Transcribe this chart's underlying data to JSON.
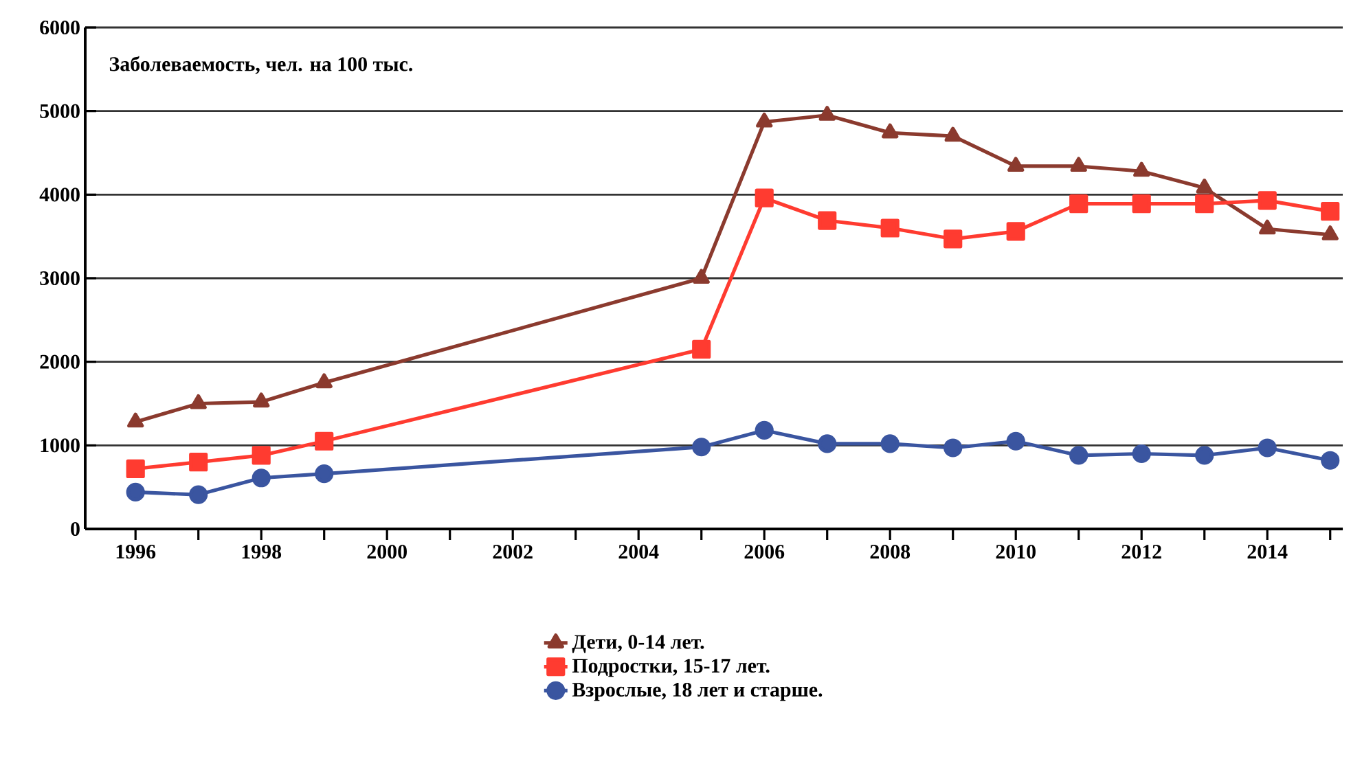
{
  "chart_data": {
    "type": "line",
    "title": "Заболеваемость, чел. на 100 тыс.",
    "x": [
      1996,
      1997,
      1998,
      1999,
      2005,
      2006,
      2007,
      2008,
      2009,
      2010,
      2011,
      2012,
      2013,
      2014,
      2015
    ],
    "series": [
      {
        "name": "Дети, 0-14 лет.",
        "color": "#8b3a2e",
        "marker": "triangle",
        "values": [
          1280,
          1500,
          1520,
          1750,
          3000,
          4870,
          4950,
          4740,
          4700,
          4340,
          4340,
          4280,
          4080,
          3590,
          3520
        ]
      },
      {
        "name": "Подростки, 15-17  лет.",
        "color": "#ff3b30",
        "marker": "square",
        "values": [
          720,
          800,
          880,
          1050,
          2150,
          3960,
          3690,
          3600,
          3470,
          3560,
          3890,
          3890,
          3890,
          3930,
          3800
        ]
      },
      {
        "name": "Взрослые, 18 лет и старше.",
        "color": "#3a55a0",
        "marker": "circle",
        "values": [
          440,
          410,
          610,
          660,
          980,
          1180,
          1020,
          1020,
          970,
          1050,
          880,
          900,
          880,
          970,
          820
        ]
      }
    ],
    "xlim": [
      1995.2,
      2015.2
    ],
    "xticks": [
      1996,
      {
        "value": 1997,
        "label": null
      },
      1998,
      {
        "value": 1999,
        "label": null
      },
      2000,
      {
        "value": 2001,
        "label": null
      },
      2002,
      {
        "value": 2003,
        "label": null
      },
      2004,
      {
        "value": 2005,
        "label": null
      },
      2006,
      {
        "value": 2007,
        "label": null
      },
      2008,
      {
        "value": 2009,
        "label": null
      },
      2010,
      {
        "value": 2011,
        "label": null
      },
      2012,
      {
        "value": 2013,
        "label": null
      },
      2014,
      {
        "value": 2015,
        "label": null
      }
    ],
    "ylim": [
      0,
      6000
    ],
    "yticks": [
      0,
      1000,
      2000,
      3000,
      4000,
      5000,
      6000
    ],
    "grid": "y",
    "legend": "bottom",
    "line_style": "solid"
  }
}
